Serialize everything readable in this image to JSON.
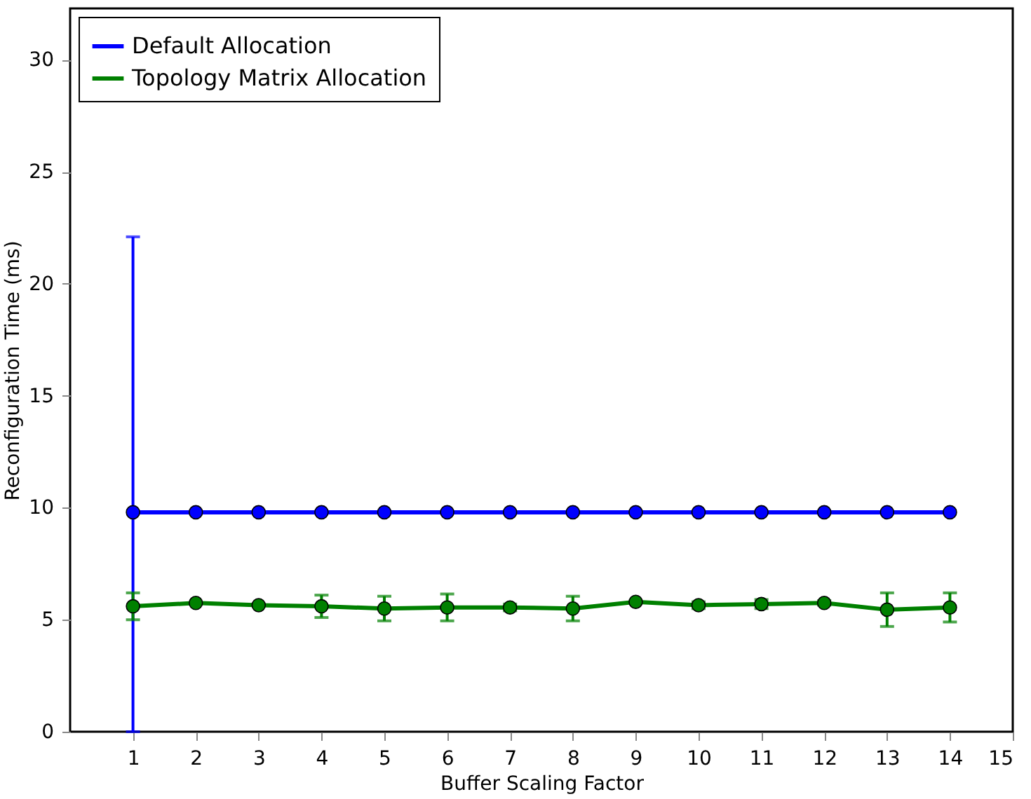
{
  "chart_data": {
    "type": "line",
    "xlabel": "Buffer Scaling Factor",
    "ylabel": "Reconfiguration Time (ms)",
    "x": [
      1,
      2,
      3,
      4,
      5,
      6,
      7,
      8,
      9,
      10,
      11,
      12,
      13,
      14
    ],
    "xlim": [
      0,
      15
    ],
    "xticks": [
      1,
      2,
      3,
      4,
      5,
      6,
      7,
      8,
      9,
      10,
      11,
      12,
      13,
      14,
      15
    ],
    "ylim": [
      0,
      32.3
    ],
    "yticks": [
      0,
      5,
      10,
      15,
      20,
      25,
      30
    ],
    "marker": "circle",
    "line_style": "solid",
    "grid": false,
    "legend": "top left",
    "series": [
      {
        "name": "Default Allocation",
        "color": "#0000ff",
        "values": [
          9.8,
          9.8,
          9.8,
          9.8,
          9.8,
          9.8,
          9.8,
          9.8,
          9.8,
          9.8,
          9.8,
          9.8,
          9.8,
          9.8
        ],
        "errors": [
          [
            0,
            22.1
          ],
          null,
          null,
          null,
          null,
          null,
          null,
          null,
          null,
          null,
          null,
          null,
          null,
          null
        ]
      },
      {
        "name": "Topology Matrix Allocation",
        "color": "#008000",
        "values": [
          5.6,
          5.75,
          5.65,
          5.6,
          5.5,
          5.55,
          5.55,
          5.5,
          5.8,
          5.65,
          5.7,
          5.75,
          5.45,
          5.55
        ],
        "errors": [
          0.6,
          null,
          null,
          0.5,
          0.55,
          0.6,
          0.15,
          0.55,
          null,
          0.15,
          0.2,
          0.1,
          0.75,
          0.65
        ]
      }
    ]
  }
}
